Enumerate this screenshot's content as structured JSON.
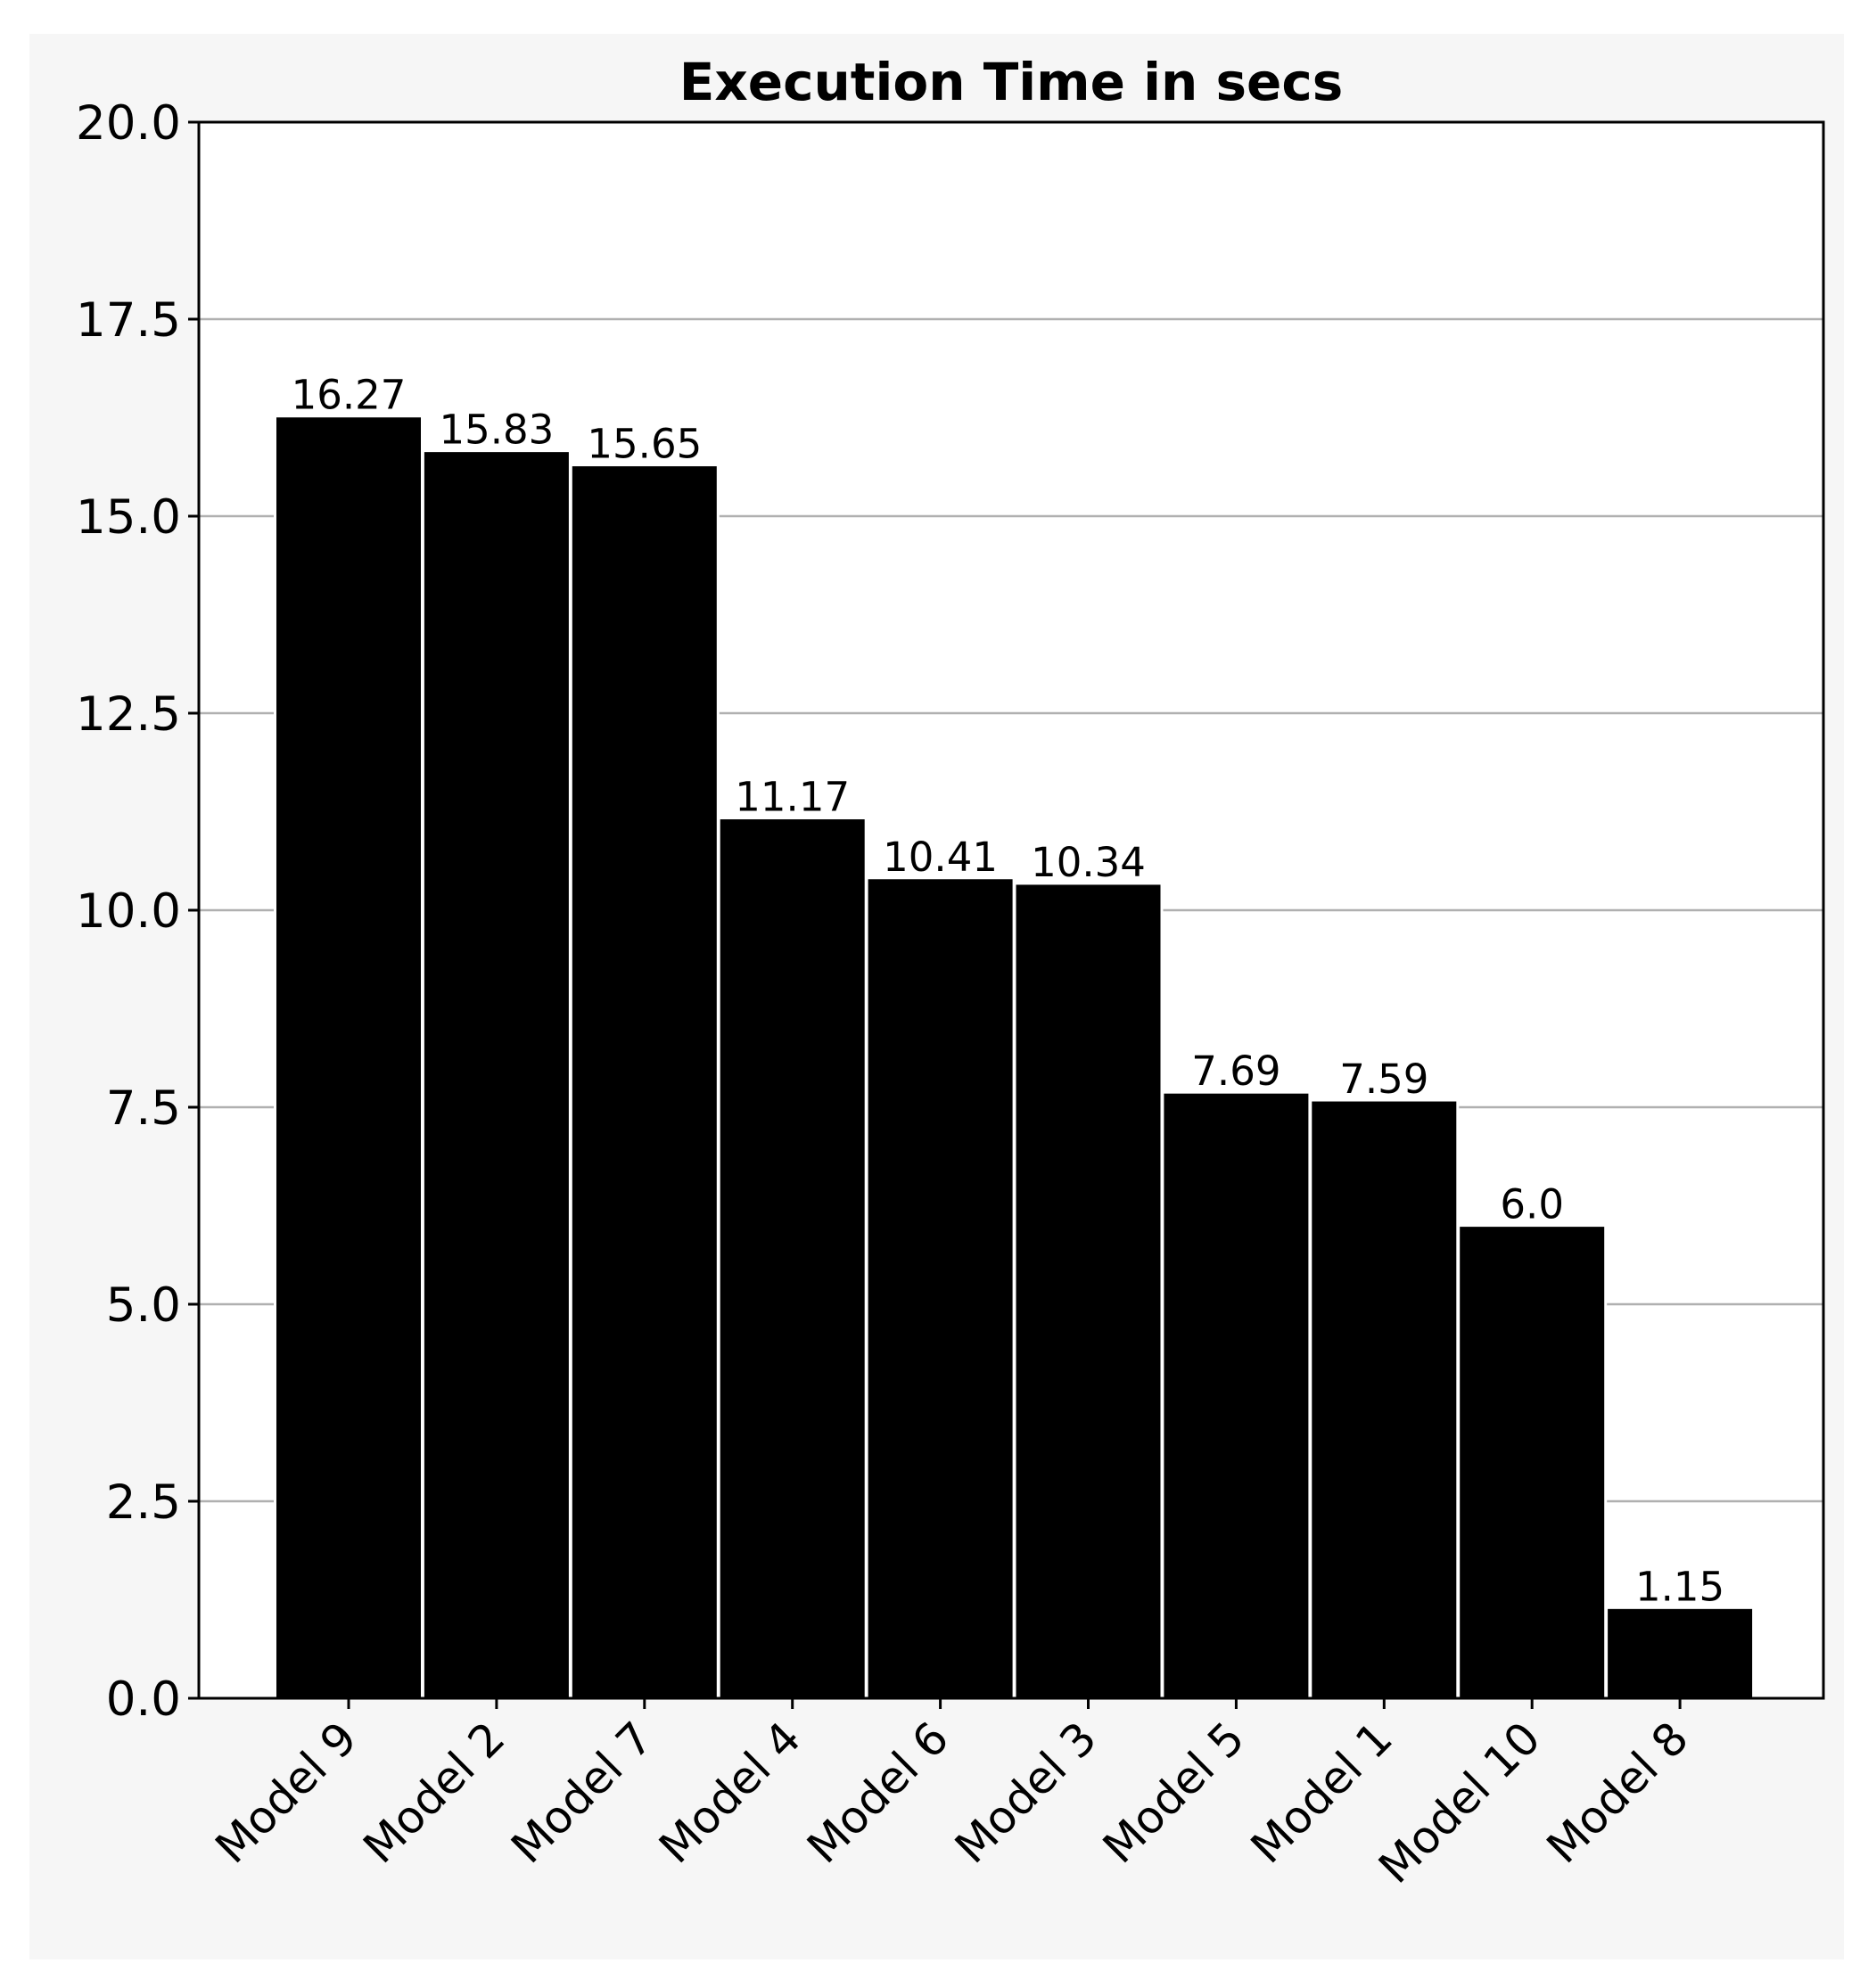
{
  "chart_data": {
    "type": "bar",
    "title": "Execution Time in secs",
    "xlabel": "",
    "ylabel": "",
    "categories": [
      "Model 9",
      "Model 2",
      "Model 7",
      "Model 4",
      "Model 6",
      "Model 3",
      "Model 5",
      "Model 1",
      "Model 10",
      "Model 8"
    ],
    "values": [
      16.27,
      15.83,
      15.65,
      11.17,
      10.41,
      10.34,
      7.69,
      7.59,
      6.0,
      1.15
    ],
    "value_labels": [
      "16.27",
      "15.83",
      "15.65",
      "11.17",
      "10.41",
      "10.34",
      "7.69",
      "7.59",
      "6.0",
      "1.15"
    ],
    "ylim": [
      0,
      20
    ],
    "yticks": [
      0.0,
      2.5,
      5.0,
      7.5,
      10.0,
      12.5,
      15.0,
      17.5,
      20.0
    ],
    "ytick_labels": [
      "0.0",
      "2.5",
      "5.0",
      "7.5",
      "10.0",
      "12.5",
      "15.0",
      "17.5",
      "20.0"
    ],
    "grid": "y",
    "bar_color": "#000000",
    "bar_edge_color": "#ffffff",
    "grid_color": "#b0b0b0",
    "background_color": "#f6f6f6",
    "plot_background_color": "#ffffff"
  }
}
